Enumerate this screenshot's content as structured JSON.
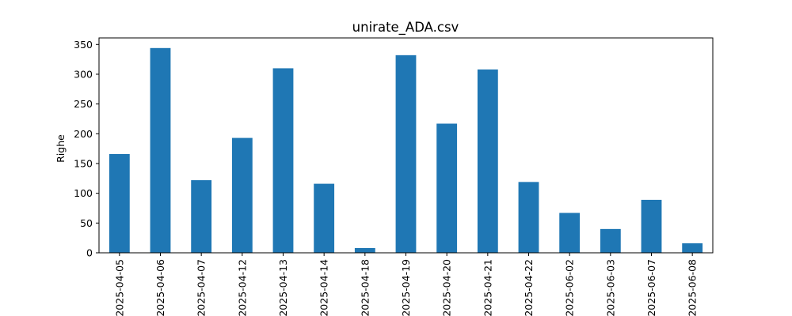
{
  "chart_data": {
    "type": "bar",
    "title": "unirate_ADA.csv",
    "xlabel": "",
    "ylabel": "Righe",
    "categories": [
      "2025-04-05",
      "2025-04-06",
      "2025-04-07",
      "2025-04-12",
      "2025-04-13",
      "2025-04-14",
      "2025-04-18",
      "2025-04-19",
      "2025-04-20",
      "2025-04-21",
      "2025-04-22",
      "2025-06-02",
      "2025-06-03",
      "2025-06-07",
      "2025-06-08"
    ],
    "values": [
      166,
      344,
      122,
      193,
      310,
      116,
      8,
      332,
      217,
      308,
      119,
      67,
      40,
      89,
      16
    ],
    "ylim": [
      0,
      361
    ],
    "yticks": [
      0,
      50,
      100,
      150,
      200,
      250,
      300,
      350
    ],
    "bar_color": "#1f77b4",
    "grid": false,
    "legend": "none"
  }
}
